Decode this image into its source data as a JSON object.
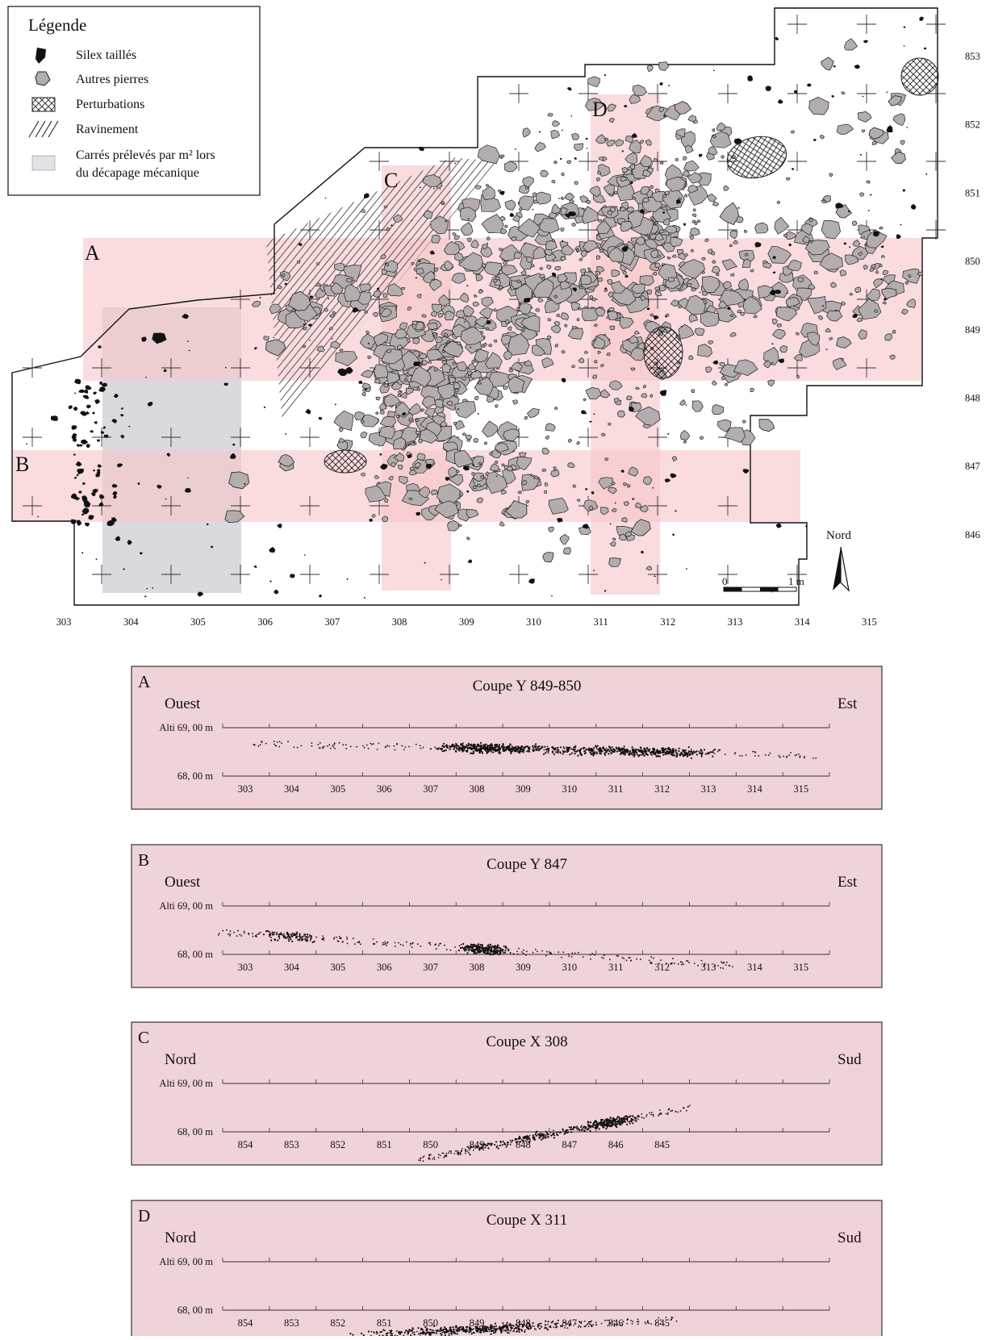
{
  "legend": {
    "title": "Légende",
    "items": [
      {
        "key": "silex",
        "label": "Silex taillés"
      },
      {
        "key": "pierres",
        "label": "Autres pierres"
      },
      {
        "key": "perturbations",
        "label": "Perturbations"
      },
      {
        "key": "ravinement",
        "label": "Ravinement"
      },
      {
        "key": "carres",
        "label_line1": "Carrés prélevés par m² lors",
        "label_line2": "du décapage mécanique"
      }
    ]
  },
  "plan": {
    "x_labels": [
      "303",
      "304",
      "305",
      "306",
      "307",
      "308",
      "309",
      "310",
      "311",
      "312",
      "313",
      "314",
      "315"
    ],
    "y_labels": [
      "853",
      "852",
      "851",
      "850",
      "849",
      "848",
      "847",
      "846"
    ],
    "band_letters": {
      "A": "A",
      "B": "B",
      "C": "C",
      "D": "D"
    },
    "north_label": "Nord",
    "scale": {
      "start": "0",
      "end": "1 m"
    }
  },
  "colors": {
    "band_pink": "#f7c6c9",
    "sampled_grey": "#d9d9de",
    "stone_fill": "#b3adae",
    "silex_fill": "#111111",
    "section_bg": "#f0d3d6"
  },
  "sections": [
    {
      "letter": "A",
      "title": "Coupe Y 849-850",
      "left_dir": "Ouest",
      "right_dir": "Est",
      "alt_top": "Alti 69, 00 m",
      "alt_bottom": "68, 00 m",
      "ticks": [
        "303",
        "304",
        "305",
        "306",
        "307",
        "308",
        "309",
        "310",
        "311",
        "312",
        "313",
        "314",
        "315"
      ]
    },
    {
      "letter": "B",
      "title": "Coupe Y 847",
      "left_dir": "Ouest",
      "right_dir": "Est",
      "alt_top": "Alti 69, 00 m",
      "alt_bottom": "68, 00 m",
      "ticks": [
        "303",
        "304",
        "305",
        "306",
        "307",
        "308",
        "309",
        "310",
        "311",
        "312",
        "313",
        "314",
        "315"
      ]
    },
    {
      "letter": "C",
      "title": "Coupe X 308",
      "left_dir": "Nord",
      "right_dir": "Sud",
      "alt_top": "Alti 69, 00 m",
      "alt_bottom": "68, 00 m",
      "ticks": [
        "854",
        "853",
        "852",
        "851",
        "850",
        "849",
        "848",
        "847",
        "846",
        "845"
      ]
    },
    {
      "letter": "D",
      "title": "Coupe X 311",
      "left_dir": "Nord",
      "right_dir": "Sud",
      "alt_top": "Alti 69, 00 m",
      "alt_bottom": "68, 00 m",
      "ticks": [
        "854",
        "853",
        "852",
        "851",
        "850",
        "849",
        "848",
        "847",
        "846",
        "845"
      ]
    }
  ]
}
